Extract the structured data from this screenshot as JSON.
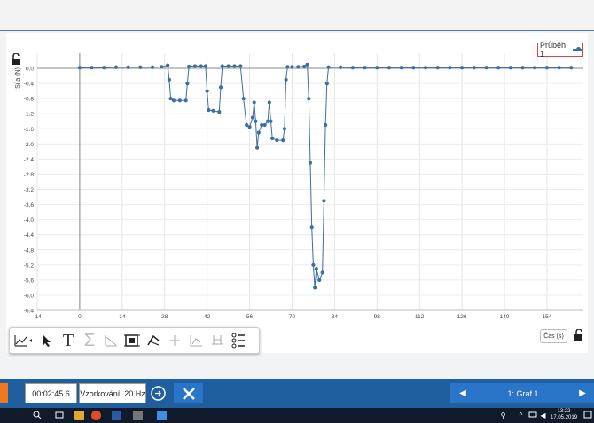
{
  "legend": {
    "label": "Průběh 1"
  },
  "x_axis_button": {
    "label": "Čas (s)"
  },
  "status": {
    "timer": "00:02:45.6",
    "sampling": "Vzorkování: 20 Hz"
  },
  "graph_nav": {
    "label": "1: Graf 1"
  },
  "taskbar": {
    "time": "13:22",
    "date": "17.05.2019"
  },
  "colors": {
    "series": "#3b6ea5",
    "accent": "#1f5fa0",
    "record": "#f07820"
  },
  "toolbar": {
    "icons": [
      "graph-options-icon",
      "pointer-icon",
      "text-tool-icon",
      "sum-icon",
      "tangent-icon",
      "autoscale-icon",
      "curve-fit-icon",
      "crosshair-icon",
      "integral-icon",
      "delta-icon",
      "list-icon"
    ]
  },
  "chart_data": {
    "type": "scatter",
    "ylabel": "Síla (N)",
    "xlabel": "Čas (s)",
    "x_ticks": [
      -14,
      0,
      14,
      28,
      42,
      56,
      70,
      84,
      98,
      112,
      126,
      140,
      154
    ],
    "y_ticks": [
      0.0,
      -0.4,
      -0.8,
      -1.2,
      -1.6,
      -2.0,
      -2.4,
      -2.8,
      -3.2,
      -3.6,
      -4.0,
      -4.4,
      -4.8,
      -5.2,
      -5.6,
      -6.0,
      -6.4
    ],
    "xlim": [
      -14,
      166
    ],
    "ylim": [
      -6.4,
      0.4
    ],
    "grid": true,
    "legend_position": "top-right",
    "series": [
      {
        "name": "Průběh 1",
        "points": [
          [
            0,
            0.02
          ],
          [
            4,
            0.02
          ],
          [
            8,
            0.02
          ],
          [
            12,
            0.03
          ],
          [
            16,
            0.03
          ],
          [
            20,
            0.03
          ],
          [
            24,
            0.03
          ],
          [
            27,
            0.04
          ],
          [
            29,
            0.08
          ],
          [
            29.5,
            -0.3
          ],
          [
            30,
            -0.8
          ],
          [
            31,
            -0.85
          ],
          [
            33,
            -0.85
          ],
          [
            35,
            -0.85
          ],
          [
            35.5,
            -0.4
          ],
          [
            36,
            0.05
          ],
          [
            38,
            0.06
          ],
          [
            40,
            0.06
          ],
          [
            41.5,
            0.06
          ],
          [
            42,
            -0.6
          ],
          [
            42.5,
            -1.1
          ],
          [
            44,
            -1.12
          ],
          [
            46,
            -1.15
          ],
          [
            46.5,
            -0.5
          ],
          [
            47,
            0.06
          ],
          [
            49,
            0.06
          ],
          [
            51,
            0.06
          ],
          [
            53,
            0.06
          ],
          [
            54,
            -0.8
          ],
          [
            55,
            -1.5
          ],
          [
            56,
            -1.55
          ],
          [
            57,
            -1.3
          ],
          [
            57.5,
            -0.9
          ],
          [
            58,
            -1.4
          ],
          [
            58.5,
            -2.1
          ],
          [
            59,
            -1.7
          ],
          [
            60,
            -1.5
          ],
          [
            61,
            -1.5
          ],
          [
            62,
            -1.4
          ],
          [
            62.5,
            -0.9
          ],
          [
            63,
            -1.4
          ],
          [
            63.5,
            -1.85
          ],
          [
            65,
            -1.9
          ],
          [
            67,
            -1.9
          ],
          [
            67.5,
            -1.6
          ],
          [
            68,
            -0.3
          ],
          [
            68.5,
            0.04
          ],
          [
            70,
            0.04
          ],
          [
            72,
            0.04
          ],
          [
            74,
            0.05
          ],
          [
            75,
            0.1
          ],
          [
            75.5,
            -0.8
          ],
          [
            76,
            -2.5
          ],
          [
            76.5,
            -4.2
          ],
          [
            77,
            -5.2
          ],
          [
            77.5,
            -5.8
          ],
          [
            78,
            -5.3
          ],
          [
            79,
            -5.6
          ],
          [
            80,
            -5.4
          ],
          [
            80.5,
            -3.5
          ],
          [
            81,
            -1.5
          ],
          [
            81.5,
            -0.4
          ],
          [
            82,
            0.03
          ],
          [
            86,
            0.03
          ],
          [
            90,
            0.02
          ],
          [
            94,
            0.02
          ],
          [
            98,
            0.02
          ],
          [
            102,
            0.02
          ],
          [
            106,
            0.02
          ],
          [
            110,
            0.02
          ],
          [
            114,
            0.02
          ],
          [
            118,
            0.02
          ],
          [
            122,
            0.02
          ],
          [
            126,
            0.02
          ],
          [
            130,
            0.02
          ],
          [
            134,
            0.02
          ],
          [
            138,
            0.02
          ],
          [
            142,
            0.02
          ],
          [
            146,
            0.02
          ],
          [
            150,
            0.02
          ],
          [
            154,
            0.02
          ],
          [
            158,
            0.02
          ],
          [
            162,
            0.02
          ]
        ]
      }
    ]
  }
}
